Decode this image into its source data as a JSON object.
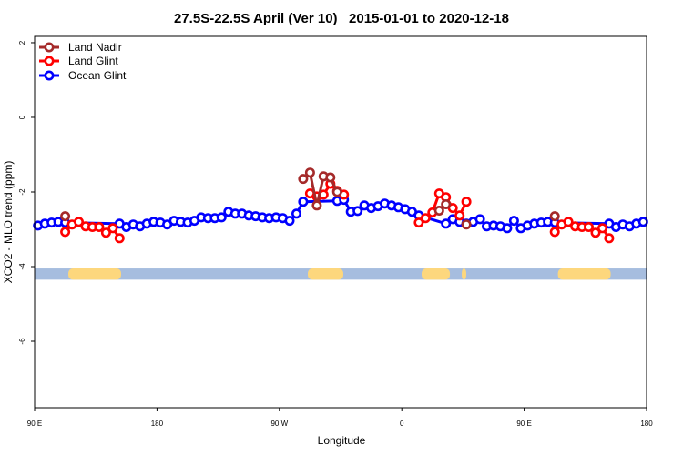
{
  "chart_data": {
    "type": "line",
    "title": "27.5S-22.5S April (Ver 10)   2015-01-01 to 2020-12-18",
    "xlabel": "Longitude",
    "ylabel": "XCO2 - MLO trend (ppm)",
    "xlim": [
      90,
      540
    ],
    "ylim": [
      -7.78,
      2.17
    ],
    "grid": false,
    "legend_position": "top-left",
    "x_ticks": [
      {
        "value": 90,
        "label": "90 E"
      },
      {
        "value": 180,
        "label": "180"
      },
      {
        "value": 270,
        "label": "90 W"
      },
      {
        "value": 360,
        "label": "0"
      },
      {
        "value": 450,
        "label": "90 E"
      },
      {
        "value": 540,
        "label": "180"
      }
    ],
    "y_ticks": [
      {
        "value": 2,
        "label": "2"
      },
      {
        "value": 0,
        "label": "0"
      },
      {
        "value": -2,
        "label": "-2"
      },
      {
        "value": -4,
        "label": "-4"
      },
      {
        "value": -6,
        "label": "-6"
      }
    ],
    "series": [
      {
        "name": "Land Nadir",
        "color": "#a52a2a",
        "segments": [
          [
            [
              112.5,
              -2.65
            ]
          ],
          [
            [
              287.5,
              -1.65
            ],
            [
              292.5,
              -1.48
            ],
            [
              297.5,
              -2.36
            ],
            [
              302.5,
              -1.58
            ],
            [
              307.5,
              -1.61
            ],
            [
              312.5,
              -2.0
            ]
          ],
          [
            [
              387.5,
              -2.5
            ],
            [
              392.5,
              -2.33
            ]
          ],
          [
            [
              407.5,
              -2.87
            ]
          ],
          [
            [
              472.5,
              -2.65
            ]
          ]
        ]
      },
      {
        "name": "Land Glint",
        "color": "#ff0000",
        "segments": [
          [
            [
              112.5,
              -3.07
            ],
            [
              117.5,
              -2.87
            ],
            [
              122.5,
              -2.8
            ],
            [
              127.5,
              -2.92
            ],
            [
              132.5,
              -2.94
            ],
            [
              137.5,
              -2.94
            ],
            [
              142.5,
              -3.09
            ],
            [
              147.5,
              -2.97
            ],
            [
              152.5,
              -3.24
            ]
          ],
          [
            [
              292.5,
              -2.04
            ],
            [
              297.5,
              -2.12
            ],
            [
              302.5,
              -2.07
            ],
            [
              307.5,
              -1.78
            ],
            [
              312.5,
              -1.97
            ],
            [
              317.5,
              -2.07
            ]
          ],
          [
            [
              372.5,
              -2.82
            ],
            [
              377.5,
              -2.7
            ],
            [
              382.5,
              -2.55
            ],
            [
              387.5,
              -2.04
            ],
            [
              392.5,
              -2.14
            ],
            [
              397.5,
              -2.43
            ],
            [
              402.5,
              -2.63
            ],
            [
              407.5,
              -2.26
            ]
          ],
          [
            [
              472.5,
              -3.07
            ],
            [
              477.5,
              -2.87
            ],
            [
              482.5,
              -2.8
            ],
            [
              487.5,
              -2.92
            ],
            [
              492.5,
              -2.94
            ],
            [
              497.5,
              -2.94
            ],
            [
              502.5,
              -3.09
            ],
            [
              507.5,
              -2.97
            ],
            [
              512.5,
              -3.24
            ]
          ]
        ]
      },
      {
        "name": "Ocean Glint",
        "color": "#0000ff",
        "segments": [
          [
            [
              92.5,
              -2.9
            ],
            [
              97.5,
              -2.85
            ],
            [
              102.5,
              -2.82
            ],
            [
              107.5,
              -2.8
            ],
            [
              112.5,
              -2.82
            ],
            [
              152.5,
              -2.85
            ],
            [
              157.5,
              -2.94
            ],
            [
              162.5,
              -2.87
            ],
            [
              167.5,
              -2.92
            ],
            [
              172.5,
              -2.85
            ],
            [
              177.5,
              -2.8
            ],
            [
              182.5,
              -2.82
            ],
            [
              187.5,
              -2.87
            ],
            [
              192.5,
              -2.77
            ],
            [
              197.5,
              -2.8
            ],
            [
              202.5,
              -2.82
            ],
            [
              207.5,
              -2.77
            ],
            [
              212.5,
              -2.68
            ],
            [
              217.5,
              -2.7
            ],
            [
              222.5,
              -2.7
            ],
            [
              227.5,
              -2.68
            ],
            [
              232.5,
              -2.53
            ],
            [
              237.5,
              -2.58
            ],
            [
              242.5,
              -2.58
            ],
            [
              247.5,
              -2.63
            ],
            [
              252.5,
              -2.65
            ],
            [
              257.5,
              -2.68
            ],
            [
              262.5,
              -2.7
            ],
            [
              267.5,
              -2.68
            ],
            [
              272.5,
              -2.7
            ],
            [
              277.5,
              -2.77
            ],
            [
              282.5,
              -2.58
            ],
            [
              287.5,
              -2.26
            ],
            [
              312.5,
              -2.24
            ],
            [
              317.5,
              -2.21
            ],
            [
              322.5,
              -2.53
            ],
            [
              327.5,
              -2.51
            ],
            [
              332.5,
              -2.36
            ],
            [
              337.5,
              -2.43
            ],
            [
              342.5,
              -2.38
            ],
            [
              347.5,
              -2.31
            ],
            [
              352.5,
              -2.36
            ],
            [
              357.5,
              -2.41
            ],
            [
              362.5,
              -2.46
            ],
            [
              367.5,
              -2.53
            ],
            [
              372.5,
              -2.63
            ],
            [
              392.5,
              -2.85
            ],
            [
              397.5,
              -2.73
            ],
            [
              402.5,
              -2.8
            ],
            [
              407.5,
              -2.85
            ],
            [
              412.5,
              -2.8
            ],
            [
              417.5,
              -2.73
            ],
            [
              422.5,
              -2.92
            ],
            [
              427.5,
              -2.9
            ],
            [
              432.5,
              -2.92
            ],
            [
              437.5,
              -2.97
            ],
            [
              442.5,
              -2.77
            ],
            [
              447.5,
              -2.97
            ],
            [
              452.5,
              -2.9
            ],
            [
              457.5,
              -2.85
            ],
            [
              462.5,
              -2.82
            ],
            [
              467.5,
              -2.8
            ],
            [
              472.5,
              -2.82
            ],
            [
              512.5,
              -2.85
            ],
            [
              517.5,
              -2.94
            ],
            [
              522.5,
              -2.87
            ],
            [
              527.5,
              -2.92
            ],
            [
              532.5,
              -2.85
            ],
            [
              537.5,
              -2.8
            ]
          ]
        ]
      }
    ],
    "surface_band": {
      "y_range": [
        -4.05,
        -4.35
      ],
      "ocean_color": "#a6bddf",
      "land_color": "#fdd77d",
      "land_ranges": [
        [
          114.8,
          153.6
        ],
        [
          290.9,
          317.0
        ],
        [
          374.6,
          395.4
        ],
        [
          404.1,
          407.4
        ],
        [
          474.8,
          513.6
        ]
      ]
    }
  }
}
